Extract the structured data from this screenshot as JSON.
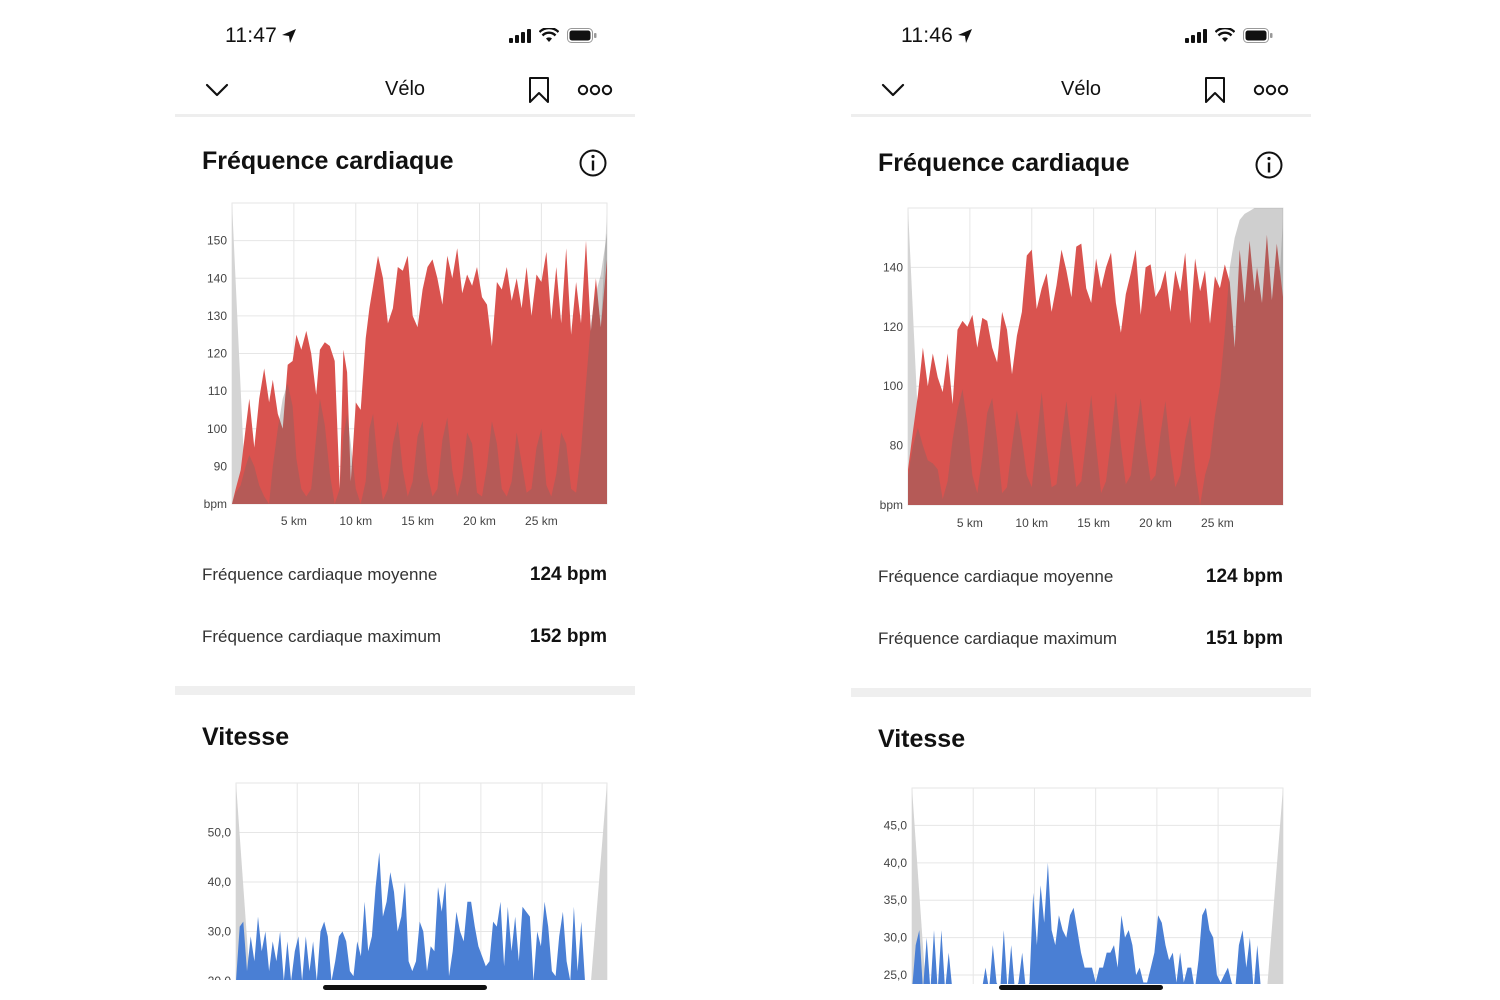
{
  "phones": [
    {
      "status": {
        "time": "11:47"
      },
      "nav": {
        "title": "Vélo"
      },
      "heart_rate": {
        "title": "Fréquence cardiaque",
        "stats": [
          {
            "label": "Fréquence cardiaque moyenne",
            "value": "124 bpm"
          },
          {
            "label": "Fréquence cardiaque maximum",
            "value": "152 bpm"
          }
        ]
      },
      "speed": {
        "title": "Vitesse"
      }
    },
    {
      "status": {
        "time": "11:46"
      },
      "nav": {
        "title": "Vélo"
      },
      "heart_rate": {
        "title": "Fréquence cardiaque",
        "stats": [
          {
            "label": "Fréquence cardiaque moyenne",
            "value": "124 bpm"
          },
          {
            "label": "Fréquence cardiaque maximum",
            "value": "151 bpm"
          }
        ]
      },
      "speed": {
        "title": "Vitesse"
      }
    }
  ],
  "colors": {
    "heart_fill": "#d9534f",
    "heart_overlay": "#b54a47",
    "speed_fill": "#4a7fd4",
    "edge_fill": "#d4d4d4",
    "grid": "#e6e6e6"
  },
  "chart_data": [
    {
      "type": "area",
      "chart": "heart-left",
      "xlabels": [
        "5 km",
        "10 km",
        "15 km",
        "20 km",
        "25 km"
      ],
      "xticks": [
        5,
        10,
        15,
        20,
        25
      ],
      "xlim": [
        0,
        30.3
      ],
      "ylabel": "bpm",
      "yticks": [
        90,
        100,
        110,
        120,
        130,
        140,
        150
      ],
      "ylim": [
        80,
        160
      ],
      "series": [
        {
          "x": [
            0,
            0.3,
            0.7,
            1.1,
            1.4,
            1.8,
            2.2,
            2.6,
            3.0,
            3.3,
            3.7,
            4.1,
            4.5,
            4.9,
            5.2,
            5.6,
            6.0,
            6.4,
            6.8,
            7.1,
            7.5,
            7.9,
            8.3,
            8.7,
            9.0,
            9.3,
            9.6,
            10.0,
            10.4,
            10.8,
            11.1,
            11.4,
            11.8,
            12.2,
            12.6,
            13.0,
            13.4,
            13.8,
            14.2,
            14.6,
            15.0,
            15.4,
            15.8,
            16.2,
            16.6,
            17.0,
            17.4,
            17.8,
            18.2,
            18.6,
            19.0,
            19.4,
            19.8,
            20.2,
            20.6,
            21.0,
            21.4,
            21.8,
            22.2,
            22.6,
            23.0,
            23.4,
            23.8,
            24.2,
            24.6,
            25.0,
            25.4,
            25.8,
            26.2,
            26.6,
            27.0,
            27.4,
            27.8,
            28.2,
            28.6,
            29.0,
            29.4,
            29.8,
            30.3
          ],
          "y": [
            80,
            84,
            89,
            100,
            108,
            95,
            108,
            116,
            107,
            113,
            104,
            100,
            117,
            118,
            125,
            121,
            126,
            120,
            109,
            121,
            123,
            122,
            118,
            84,
            121,
            115,
            86,
            107,
            105,
            124,
            132,
            138,
            146,
            140,
            128,
            132,
            143,
            142,
            146,
            130,
            127,
            137,
            143,
            145,
            140,
            133,
            146,
            140,
            148,
            136,
            141,
            138,
            143,
            135,
            133,
            122,
            139,
            137,
            143,
            134,
            140,
            132,
            143,
            130,
            141,
            139,
            147,
            129,
            143,
            128,
            148,
            125,
            139,
            128,
            150,
            126,
            140,
            127,
            145
          ],
          "overlay": [
            80,
            83,
            85,
            90,
            93,
            90,
            85,
            82,
            80,
            90,
            100,
            108,
            112,
            106,
            92,
            84,
            82,
            84,
            98,
            108,
            101,
            88,
            80,
            84,
            98,
            104,
            96,
            84,
            80,
            86,
            100,
            104,
            90,
            81,
            84,
            96,
            102,
            89,
            82,
            86,
            98,
            102,
            88,
            82,
            84,
            97,
            103,
            89,
            82,
            87,
            99,
            96,
            83,
            82,
            90,
            102,
            96,
            84,
            82,
            86,
            99,
            91,
            83,
            84,
            95,
            100,
            85,
            82,
            88,
            99,
            96,
            84,
            83,
            94,
            112,
            128,
            136,
            141,
            152
          ]
        }
      ]
    },
    {
      "type": "area",
      "chart": "heart-right",
      "xlabels": [
        "5 km",
        "10 km",
        "15 km",
        "20 km",
        "25 km"
      ],
      "xticks": [
        5,
        10,
        15,
        20,
        25
      ],
      "xlim": [
        0,
        30.3
      ],
      "ylabel": "bpm",
      "yticks": [
        80,
        100,
        120,
        140
      ],
      "ylim": [
        60,
        160
      ],
      "series": [
        {
          "x": [
            0,
            0.4,
            0.8,
            1.2,
            1.6,
            2.0,
            2.4,
            2.8,
            3.2,
            3.6,
            4.0,
            4.4,
            4.8,
            5.2,
            5.6,
            6.0,
            6.4,
            6.8,
            7.2,
            7.6,
            8.0,
            8.4,
            8.8,
            9.2,
            9.6,
            10.0,
            10.4,
            10.8,
            11.2,
            11.6,
            12.0,
            12.4,
            12.8,
            13.2,
            13.6,
            14.0,
            14.4,
            14.8,
            15.2,
            15.6,
            16.0,
            16.4,
            16.8,
            17.2,
            17.6,
            18.0,
            18.4,
            18.8,
            19.2,
            19.6,
            20.0,
            20.4,
            20.8,
            21.2,
            21.6,
            22.0,
            22.4,
            22.8,
            23.2,
            23.6,
            24.0,
            24.4,
            24.8,
            25.2,
            25.6,
            26.0,
            26.4,
            26.8,
            27.2,
            27.6,
            28.0,
            28.2,
            28.6,
            29.0,
            29.4,
            29.8,
            30.3
          ],
          "y": [
            72,
            85,
            97,
            113,
            100,
            111,
            103,
            98,
            111,
            94,
            119,
            122,
            120,
            124,
            113,
            123,
            122,
            113,
            108,
            125,
            119,
            104,
            117,
            125,
            144,
            146,
            126,
            133,
            138,
            125,
            134,
            146,
            139,
            130,
            147,
            148,
            133,
            128,
            143,
            133,
            140,
            145,
            128,
            118,
            131,
            138,
            146,
            124,
            140,
            141,
            130,
            133,
            139,
            125,
            139,
            132,
            145,
            121,
            143,
            132,
            139,
            121,
            137,
            133,
            141,
            135,
            113,
            146,
            128,
            149,
            132,
            140,
            128,
            151,
            129,
            148,
            130
          ],
          "overlay": [
            70,
            80,
            86,
            80,
            75,
            74,
            72,
            62,
            68,
            82,
            92,
            99,
            87,
            70,
            64,
            76,
            91,
            96,
            82,
            64,
            66,
            80,
            92,
            82,
            70,
            66,
            82,
            98,
            80,
            66,
            67,
            82,
            95,
            80,
            66,
            68,
            82,
            97,
            80,
            64,
            68,
            82,
            98,
            80,
            67,
            70,
            84,
            96,
            80,
            68,
            70,
            84,
            95,
            78,
            66,
            70,
            82,
            90,
            72,
            60,
            70,
            76,
            90,
            100,
            118,
            140,
            150,
            156,
            158,
            159,
            160,
            160,
            160,
            160,
            160,
            160,
            160
          ]
        }
      ]
    },
    {
      "type": "area",
      "chart": "speed-left",
      "xlim": [
        0,
        30.3
      ],
      "yticks": [
        20,
        30,
        40,
        50
      ],
      "ytick_labels": [
        "20,0",
        "30,0",
        "40,0",
        "50,0"
      ],
      "ylim": [
        20,
        60
      ],
      "series": [
        {
          "x": [
            0,
            0.3,
            0.6,
            0.9,
            1.2,
            1.5,
            1.8,
            2.1,
            2.4,
            2.7,
            3.0,
            3.3,
            3.6,
            3.9,
            4.2,
            4.5,
            4.8,
            5.1,
            5.4,
            5.7,
            6.0,
            6.3,
            6.6,
            6.9,
            7.2,
            7.5,
            7.8,
            8.1,
            8.4,
            8.7,
            9.0,
            9.3,
            9.6,
            9.9,
            10.2,
            10.5,
            10.8,
            11.1,
            11.4,
            11.7,
            12.0,
            12.3,
            12.6,
            12.9,
            13.2,
            13.5,
            13.8,
            14.1,
            14.4,
            14.7,
            15.0,
            15.3,
            15.6,
            15.9,
            16.2,
            16.5,
            16.8,
            17.1,
            17.4,
            17.7,
            18.0,
            18.3,
            18.6,
            18.9,
            19.2,
            19.5,
            19.8,
            20.1,
            20.4,
            20.7,
            21.0,
            21.3,
            21.6,
            21.9,
            22.2,
            22.5,
            22.8,
            23.1,
            23.4,
            23.7,
            24.0,
            24.3,
            24.6,
            24.9,
            25.2,
            25.5,
            25.8,
            26.1,
            26.4,
            26.7,
            27.0,
            27.3,
            27.6,
            27.9,
            28.2,
            28.5,
            28.8,
            29.1,
            29.4,
            29.7,
            30.0,
            30.3
          ],
          "y": [
            20,
            31,
            32,
            22,
            29,
            24,
            33,
            26,
            30,
            22,
            28,
            24,
            30,
            20,
            28,
            20,
            26,
            29,
            20,
            29,
            22,
            28,
            20,
            30,
            32,
            29,
            20,
            24,
            29,
            30,
            28,
            22,
            21,
            28,
            25,
            36,
            26,
            29,
            39,
            46,
            33,
            36,
            42,
            38,
            30,
            33,
            40,
            24,
            22,
            24,
            32,
            30,
            22,
            27,
            26,
            39,
            34,
            40,
            21,
            26,
            34,
            30,
            28,
            36,
            36,
            31,
            27,
            25,
            23,
            24,
            32,
            31,
            36,
            23,
            35,
            26,
            33,
            24,
            35,
            34,
            33,
            20,
            30,
            27,
            36,
            31,
            22,
            21,
            29,
            34,
            24,
            20,
            35,
            22,
            32,
            20,
            20,
            20,
            20,
            20,
            20,
            20
          ]
        }
      ]
    },
    {
      "type": "area",
      "chart": "speed-right",
      "xlim": [
        0,
        30.3
      ],
      "yticks": [
        25,
        30,
        35,
        40,
        45
      ],
      "ytick_labels": [
        "25,0",
        "30,0",
        "35,0",
        "40,0",
        "45,0"
      ],
      "ylim": [
        23,
        50
      ],
      "series": [
        {
          "x": [
            0,
            0.3,
            0.6,
            0.9,
            1.2,
            1.5,
            1.8,
            2.1,
            2.4,
            2.7,
            3.0,
            3.3,
            3.6,
            3.9,
            4.2,
            4.5,
            4.8,
            5.1,
            5.4,
            5.7,
            6.0,
            6.3,
            6.6,
            6.9,
            7.2,
            7.5,
            7.8,
            8.1,
            8.4,
            8.7,
            9.0,
            9.3,
            9.6,
            9.9,
            10.2,
            10.5,
            10.8,
            11.1,
            11.4,
            11.7,
            12.0,
            12.3,
            12.6,
            12.9,
            13.2,
            13.5,
            13.8,
            14.1,
            14.4,
            14.7,
            15.0,
            15.3,
            15.6,
            15.9,
            16.2,
            16.5,
            16.8,
            17.1,
            17.4,
            17.7,
            18.0,
            18.3,
            18.6,
            18.9,
            19.2,
            19.5,
            19.8,
            20.1,
            20.4,
            20.7,
            21.0,
            21.3,
            21.6,
            21.9,
            22.2,
            22.5,
            22.8,
            23.1,
            23.4,
            23.7,
            24.0,
            24.3,
            24.6,
            24.9,
            25.2,
            25.5,
            25.8,
            26.1,
            26.4,
            26.7,
            27.0,
            27.3,
            27.6,
            27.9,
            28.2,
            28.5,
            28.8,
            29.1,
            29.4,
            29.7,
            30.0,
            30.3
          ],
          "y": [
            23,
            29,
            31,
            23,
            30,
            23,
            31,
            23,
            31,
            23,
            28,
            23,
            23,
            23,
            23,
            23,
            23,
            23,
            23,
            23,
            26,
            23,
            29,
            24,
            23,
            31,
            23,
            29,
            23,
            24,
            28,
            23,
            24,
            36,
            29,
            37,
            32,
            40,
            31,
            29,
            33,
            31,
            30,
            33,
            34,
            31,
            28,
            26,
            26,
            26,
            24,
            26,
            26,
            28,
            28,
            29,
            26,
            33,
            30,
            31,
            29,
            25,
            26,
            24,
            24,
            26,
            28,
            33,
            32,
            29,
            27,
            28,
            24,
            28,
            24,
            26,
            26,
            23,
            27,
            33,
            34,
            31,
            30,
            25,
            24,
            25,
            26,
            24,
            23,
            29,
            31,
            26,
            30,
            23,
            29,
            23,
            23,
            23,
            23,
            23,
            23,
            23
          ]
        }
      ]
    }
  ]
}
